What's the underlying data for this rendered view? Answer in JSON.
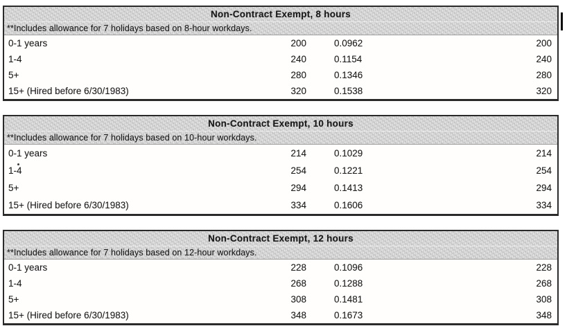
{
  "colors": {
    "band": "#d6d6d6",
    "border": "#2a2a2a",
    "text": "#1a1a1a"
  },
  "tables": [
    {
      "title": "Non-Contract Exempt, 8 hours",
      "note": "**Includes allowance for 7 holidays based on 8-hour workdays.",
      "rows": [
        {
          "tier": "0-1 years",
          "hours": "200",
          "rate": "0.0962",
          "hours2": "200"
        },
        {
          "tier": "1-4",
          "hours": "240",
          "rate": "0.1154",
          "hours2": "240"
        },
        {
          "tier": "5+",
          "hours": "280",
          "rate": "0.1346",
          "hours2": "280"
        },
        {
          "tier": "15+ (Hired before 6/30/1983)",
          "hours": "320",
          "rate": "0.1538",
          "hours2": "320"
        }
      ]
    },
    {
      "title": "Non-Contract Exempt, 10 hours",
      "note": "**Includes allowance for 7 holidays based on 10-hour workdays.",
      "rows": [
        {
          "tier": "0-1 years",
          "hours": "214",
          "rate": "0.1029",
          "hours2": "214"
        },
        {
          "tier": "1-4",
          "hours": "254",
          "rate": "0.1221",
          "hours2": "254"
        },
        {
          "tier": "5+",
          "hours": "294",
          "rate": "0.1413",
          "hours2": "294"
        },
        {
          "tier": "15+ (Hired before 6/30/1983)",
          "hours": "334",
          "rate": "0.1606",
          "hours2": "334"
        }
      ]
    },
    {
      "title": "Non-Contract Exempt, 12 hours",
      "note": "**Includes allowance for 7 holidays based on 12-hour workdays.",
      "rows": [
        {
          "tier": "0-1 years",
          "hours": "228",
          "rate": "0.1096",
          "hours2": "228"
        },
        {
          "tier": "1-4",
          "hours": "268",
          "rate": "0.1288",
          "hours2": "268"
        },
        {
          "tier": "5+",
          "hours": "308",
          "rate": "0.1481",
          "hours2": "308"
        },
        {
          "tier": "15+ (Hired before 6/30/1983)",
          "hours": "348",
          "rate": "0.1673",
          "hours2": "348"
        }
      ]
    }
  ]
}
